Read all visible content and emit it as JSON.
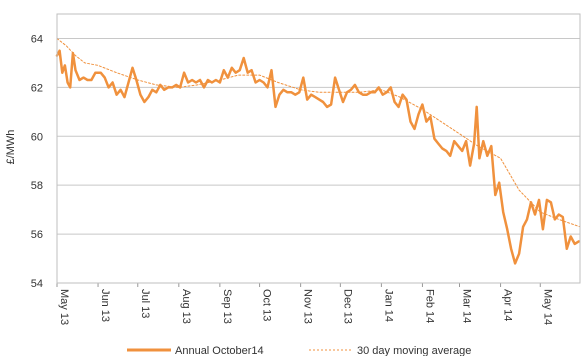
{
  "chart_data": {
    "type": "line",
    "ylabel": "£/MWh",
    "ylim": [
      54,
      65
    ],
    "yticks": [
      54,
      56,
      58,
      60,
      62,
      64
    ],
    "xlim": [
      "2013-05-01",
      "2014-05-31"
    ],
    "xticks": [
      {
        "date": "2013-05-01",
        "label": "May 13"
      },
      {
        "date": "2013-06-01",
        "label": "Jun 13"
      },
      {
        "date": "2013-07-01",
        "label": "Jul 13"
      },
      {
        "date": "2013-08-01",
        "label": "Aug 13"
      },
      {
        "date": "2013-09-01",
        "label": "Sep 13"
      },
      {
        "date": "2013-10-01",
        "label": "Oct 13"
      },
      {
        "date": "2013-11-01",
        "label": "Nov 13"
      },
      {
        "date": "2013-12-01",
        "label": "Dec 13"
      },
      {
        "date": "2014-01-01",
        "label": "Jan 14"
      },
      {
        "date": "2014-02-01",
        "label": "Feb 14"
      },
      {
        "date": "2014-03-01",
        "label": "Mar 14"
      },
      {
        "date": "2014-04-01",
        "label": "Apr 14"
      },
      {
        "date": "2014-05-01",
        "label": "May 14"
      }
    ],
    "grid": true,
    "legend": "bottom",
    "series": [
      {
        "name": "Annual October14",
        "color": "#F0913D",
        "style": "solid",
        "points": [
          [
            "2013-05-01",
            63.3
          ],
          [
            "2013-05-03",
            63.5
          ],
          [
            "2013-05-05",
            62.6
          ],
          [
            "2013-05-07",
            62.9
          ],
          [
            "2013-05-09",
            62.2
          ],
          [
            "2013-05-11",
            62.0
          ],
          [
            "2013-05-13",
            63.4
          ],
          [
            "2013-05-15",
            62.7
          ],
          [
            "2013-05-18",
            62.3
          ],
          [
            "2013-05-21",
            62.4
          ],
          [
            "2013-05-24",
            62.3
          ],
          [
            "2013-05-27",
            62.3
          ],
          [
            "2013-05-30",
            62.6
          ],
          [
            "2013-06-03",
            62.6
          ],
          [
            "2013-06-06",
            62.4
          ],
          [
            "2013-06-09",
            62.0
          ],
          [
            "2013-06-12",
            62.2
          ],
          [
            "2013-06-15",
            61.7
          ],
          [
            "2013-06-18",
            61.9
          ],
          [
            "2013-06-21",
            61.6
          ],
          [
            "2013-06-24",
            62.2
          ],
          [
            "2013-06-27",
            62.8
          ],
          [
            "2013-06-30",
            62.3
          ],
          [
            "2013-07-03",
            61.7
          ],
          [
            "2013-07-06",
            61.4
          ],
          [
            "2013-07-09",
            61.6
          ],
          [
            "2013-07-12",
            61.9
          ],
          [
            "2013-07-15",
            61.8
          ],
          [
            "2013-07-18",
            62.1
          ],
          [
            "2013-07-21",
            61.9
          ],
          [
            "2013-07-24",
            62.0
          ],
          [
            "2013-07-27",
            62.0
          ],
          [
            "2013-07-30",
            62.1
          ],
          [
            "2013-08-02",
            62.0
          ],
          [
            "2013-08-05",
            62.6
          ],
          [
            "2013-08-08",
            62.2
          ],
          [
            "2013-08-11",
            62.3
          ],
          [
            "2013-08-14",
            62.2
          ],
          [
            "2013-08-17",
            62.3
          ],
          [
            "2013-08-20",
            62.0
          ],
          [
            "2013-08-23",
            62.3
          ],
          [
            "2013-08-26",
            62.2
          ],
          [
            "2013-08-29",
            62.3
          ],
          [
            "2013-09-01",
            62.2
          ],
          [
            "2013-09-04",
            62.7
          ],
          [
            "2013-09-07",
            62.4
          ],
          [
            "2013-09-10",
            62.8
          ],
          [
            "2013-09-13",
            62.6
          ],
          [
            "2013-09-16",
            62.7
          ],
          [
            "2013-09-19",
            63.2
          ],
          [
            "2013-09-22",
            62.6
          ],
          [
            "2013-09-25",
            62.7
          ],
          [
            "2013-09-28",
            62.2
          ],
          [
            "2013-10-01",
            62.3
          ],
          [
            "2013-10-04",
            62.2
          ],
          [
            "2013-10-07",
            62.0
          ],
          [
            "2013-10-10",
            62.7
          ],
          [
            "2013-10-13",
            61.2
          ],
          [
            "2013-10-16",
            61.7
          ],
          [
            "2013-10-19",
            61.9
          ],
          [
            "2013-10-22",
            61.8
          ],
          [
            "2013-10-25",
            61.8
          ],
          [
            "2013-10-28",
            61.7
          ],
          [
            "2013-10-31",
            61.8
          ],
          [
            "2013-11-03",
            62.4
          ],
          [
            "2013-11-06",
            61.5
          ],
          [
            "2013-11-09",
            61.7
          ],
          [
            "2013-11-12",
            61.6
          ],
          [
            "2013-11-15",
            61.5
          ],
          [
            "2013-11-18",
            61.4
          ],
          [
            "2013-11-21",
            61.2
          ],
          [
            "2013-11-24",
            61.3
          ],
          [
            "2013-11-27",
            62.4
          ],
          [
            "2013-11-30",
            61.9
          ],
          [
            "2013-12-03",
            61.4
          ],
          [
            "2013-12-06",
            61.8
          ],
          [
            "2013-12-09",
            61.9
          ],
          [
            "2013-12-12",
            62.1
          ],
          [
            "2013-12-15",
            61.8
          ],
          [
            "2013-12-18",
            61.7
          ],
          [
            "2013-12-21",
            61.7
          ],
          [
            "2013-12-24",
            61.8
          ],
          [
            "2013-12-27",
            61.8
          ],
          [
            "2013-12-30",
            62.0
          ],
          [
            "2014-01-02",
            61.7
          ],
          [
            "2014-01-05",
            61.8
          ],
          [
            "2014-01-08",
            62.0
          ],
          [
            "2014-01-11",
            61.4
          ],
          [
            "2014-01-14",
            61.2
          ],
          [
            "2014-01-17",
            61.7
          ],
          [
            "2014-01-20",
            61.5
          ],
          [
            "2014-01-23",
            60.6
          ],
          [
            "2014-01-26",
            60.3
          ],
          [
            "2014-01-29",
            60.9
          ],
          [
            "2014-02-01",
            61.3
          ],
          [
            "2014-02-04",
            60.6
          ],
          [
            "2014-02-07",
            60.8
          ],
          [
            "2014-02-10",
            59.9
          ],
          [
            "2014-02-13",
            59.7
          ],
          [
            "2014-02-16",
            59.5
          ],
          [
            "2014-02-19",
            59.4
          ],
          [
            "2014-02-22",
            59.2
          ],
          [
            "2014-02-25",
            59.8
          ],
          [
            "2014-02-28",
            59.6
          ],
          [
            "2014-03-03",
            59.4
          ],
          [
            "2014-03-06",
            59.8
          ],
          [
            "2014-03-09",
            58.8
          ],
          [
            "2014-03-12",
            59.7
          ],
          [
            "2014-03-14",
            61.2
          ],
          [
            "2014-03-16",
            59.1
          ],
          [
            "2014-03-19",
            59.8
          ],
          [
            "2014-03-22",
            59.2
          ],
          [
            "2014-03-25",
            59.6
          ],
          [
            "2014-03-28",
            57.6
          ],
          [
            "2014-03-31",
            58.1
          ],
          [
            "2014-04-03",
            56.9
          ],
          [
            "2014-04-06",
            56.2
          ],
          [
            "2014-04-09",
            55.4
          ],
          [
            "2014-04-12",
            54.8
          ],
          [
            "2014-04-15",
            55.2
          ],
          [
            "2014-04-18",
            56.3
          ],
          [
            "2014-04-21",
            56.6
          ],
          [
            "2014-04-24",
            57.3
          ],
          [
            "2014-04-27",
            56.8
          ],
          [
            "2014-04-30",
            57.4
          ],
          [
            "2014-05-03",
            56.2
          ],
          [
            "2014-05-06",
            57.4
          ],
          [
            "2014-05-09",
            57.3
          ],
          [
            "2014-05-12",
            56.6
          ],
          [
            "2014-05-15",
            56.8
          ],
          [
            "2014-05-18",
            56.7
          ],
          [
            "2014-05-21",
            55.4
          ],
          [
            "2014-05-24",
            55.9
          ],
          [
            "2014-05-27",
            55.6
          ],
          [
            "2014-05-30",
            55.7
          ]
        ]
      },
      {
        "name": "30 day moving average",
        "color": "#F0913D",
        "style": "dashed",
        "points": [
          [
            "2013-05-01",
            64.0
          ],
          [
            "2013-05-08",
            63.7
          ],
          [
            "2013-05-15",
            63.3
          ],
          [
            "2013-05-22",
            63.0
          ],
          [
            "2013-06-01",
            62.9
          ],
          [
            "2013-06-15",
            62.6
          ],
          [
            "2013-07-01",
            62.3
          ],
          [
            "2013-07-15",
            62.1
          ],
          [
            "2013-08-01",
            62.0
          ],
          [
            "2013-08-15",
            62.1
          ],
          [
            "2013-09-01",
            62.3
          ],
          [
            "2013-09-15",
            62.5
          ],
          [
            "2013-10-01",
            62.5
          ],
          [
            "2013-10-15",
            62.2
          ],
          [
            "2013-11-01",
            61.9
          ],
          [
            "2013-11-15",
            61.8
          ],
          [
            "2013-12-01",
            61.8
          ],
          [
            "2013-12-15",
            61.8
          ],
          [
            "2014-01-01",
            61.9
          ],
          [
            "2014-01-15",
            61.6
          ],
          [
            "2014-02-01",
            61.1
          ],
          [
            "2014-02-15",
            60.6
          ],
          [
            "2014-03-01",
            60.1
          ],
          [
            "2014-03-15",
            59.6
          ],
          [
            "2014-04-01",
            59.1
          ],
          [
            "2014-04-15",
            57.8
          ],
          [
            "2014-05-01",
            56.9
          ],
          [
            "2014-05-15",
            56.6
          ],
          [
            "2014-05-31",
            56.3
          ]
        ]
      }
    ]
  }
}
